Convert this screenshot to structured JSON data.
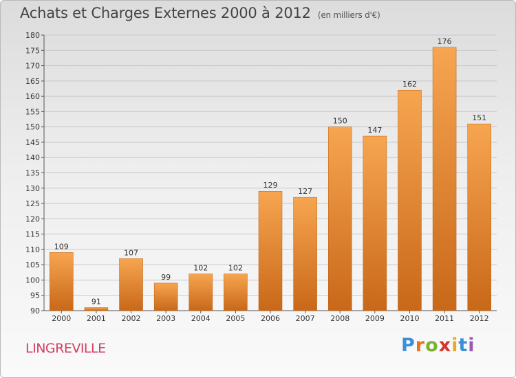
{
  "header": {
    "title": "Achats et Charges Externes 2000 à 2012",
    "subtitle": "(en milliers d'€)"
  },
  "footer": {
    "town": "LINGREVILLE",
    "logo": [
      "P",
      "r",
      "o",
      "x",
      "i",
      "t",
      "i"
    ]
  },
  "colors": {
    "bar_top": "#f7a550",
    "bar_bottom": "#c86818",
    "title": "#444444",
    "town": "#d43e64"
  },
  "chart_data": {
    "type": "bar",
    "title": "Achats et Charges Externes 2000 à 2012",
    "subtitle": "(en milliers d'€)",
    "categories": [
      "2000",
      "2001",
      "2002",
      "2003",
      "2004",
      "2005",
      "2006",
      "2007",
      "2008",
      "2009",
      "2010",
      "2011",
      "2012"
    ],
    "values": [
      109,
      91,
      107,
      99,
      102,
      102,
      129,
      127,
      150,
      147,
      162,
      176,
      151
    ],
    "ylim": [
      90,
      180
    ],
    "yticks": [
      90,
      95,
      100,
      105,
      110,
      115,
      120,
      125,
      130,
      135,
      140,
      145,
      150,
      155,
      160,
      165,
      170,
      175,
      180
    ],
    "grid": true,
    "data_labels": true
  }
}
